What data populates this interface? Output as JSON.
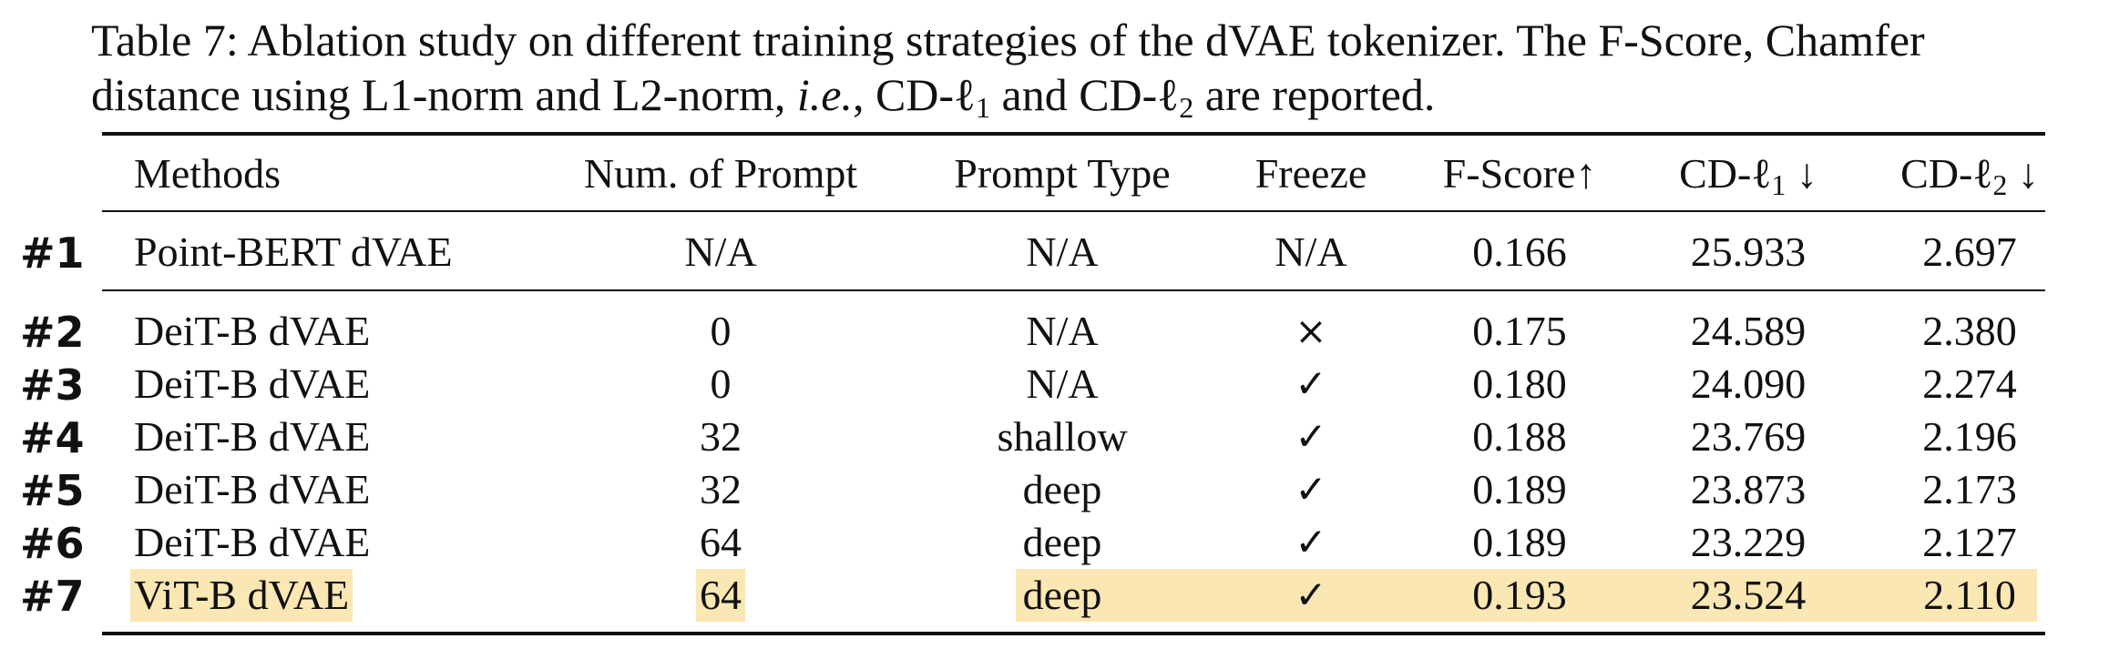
{
  "caption": {
    "line1": "Table 7: Ablation study on different training strategies of the dVAE tokenizer. The F-Score, Chamfer",
    "line2_a": "distance using L1-norm and L2-norm, ",
    "line2_ie": "i.e.",
    "line2_b": ", CD-ℓ",
    "sub1": "1",
    "line2_c": " and CD-ℓ",
    "sub2": "2",
    "line2_d": " are reported."
  },
  "table": {
    "headers": {
      "methods": "Methods",
      "num_prompt": "Num. of Prompt",
      "prompt_type": "Prompt Type",
      "freeze": "Freeze",
      "fscore": "F-Score↑",
      "cd1_prefix": "CD-ℓ",
      "cd1_sub": "1",
      "cd1_arrow": " ↓",
      "cd2_prefix": "CD-ℓ",
      "cd2_sub": "2",
      "cd2_arrow": " ↓"
    },
    "rows": [
      {
        "num": "#1",
        "method": "Point-BERT dVAE",
        "prompt_num": "N/A",
        "prompt_type": "N/A",
        "freeze": "N/A",
        "fscore": "0.166",
        "cd1": "25.933",
        "cd2": "2.697"
      },
      {
        "num": "#2",
        "method": "DeiT-B dVAE",
        "prompt_num": "0",
        "prompt_type": "N/A",
        "freeze": "×",
        "fscore": "0.175",
        "cd1": "24.589",
        "cd2": "2.380"
      },
      {
        "num": "#3",
        "method": "DeiT-B dVAE",
        "prompt_num": "0",
        "prompt_type": "N/A",
        "freeze": "✓",
        "fscore": "0.180",
        "cd1": "24.090",
        "cd2": "2.274"
      },
      {
        "num": "#4",
        "method": "DeiT-B dVAE",
        "prompt_num": "32",
        "prompt_type": "shallow",
        "freeze": "✓",
        "fscore": "0.188",
        "cd1": "23.769",
        "cd2": "2.196"
      },
      {
        "num": "#5",
        "method": "DeiT-B dVAE",
        "prompt_num": "32",
        "prompt_type": "deep",
        "freeze": "✓",
        "fscore": "0.189",
        "cd1": "23.873",
        "cd2": "2.173"
      },
      {
        "num": "#6",
        "method": "DeiT-B dVAE",
        "prompt_num": "64",
        "prompt_type": "deep",
        "freeze": "✓",
        "fscore": "0.189",
        "cd1": "23.229",
        "cd2": "2.127"
      },
      {
        "num": "#7",
        "method": "ViT-B dVAE",
        "prompt_num": "64",
        "prompt_type": "deep",
        "freeze": "✓",
        "fscore": "0.193",
        "cd1": "23.524",
        "cd2": "2.110"
      }
    ],
    "highlight_color": "#fbe7b3"
  }
}
